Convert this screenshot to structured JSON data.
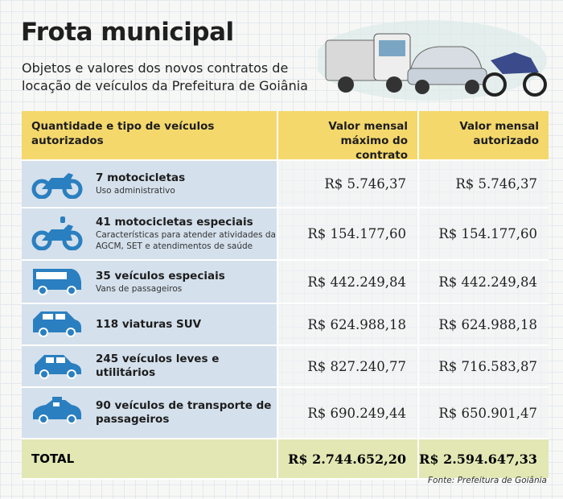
{
  "header": {
    "title": "Frota municipal",
    "subtitle": "Objetos e valores dos novos contratos de locação de veículos da Prefeitura de Goiânia"
  },
  "table": {
    "columns": [
      "Quantidade e tipo de veículos autorizados",
      "Valor mensal máximo do contrato",
      "Valor mensal autorizado"
    ],
    "rows": [
      {
        "title": "7 motocicletas",
        "description": "Uso administrativo",
        "max": "R$ 5.746,37",
        "authorized": "R$ 5.746,37"
      },
      {
        "title": "41 motocicletas especiais",
        "description": "Características para atender atividades da AGCM, SET e atendimentos de saúde",
        "max": "R$ 154.177,60",
        "authorized": "R$ 154.177,60"
      },
      {
        "title": "35 veículos especiais",
        "description": "Vans de passageiros",
        "max": "R$ 442.249,84",
        "authorized": "R$ 442.249,84"
      },
      {
        "title": "118 viaturas SUV",
        "max": "R$ 624.988,18",
        "authorized": "R$ 624.988,18"
      },
      {
        "title": "245 veículos leves e utilitários",
        "max": "R$ 827.240,77",
        "authorized": "R$ 716.583,87"
      },
      {
        "title": "90 veículos de transporte de passageiros",
        "max": "R$ 690.249,44",
        "authorized": "R$ 650.901,47"
      }
    ],
    "total": {
      "label": "TOTAL",
      "max": "R$ 2.744.652,20",
      "authorized": "R$ 2.594.647,33"
    }
  },
  "footer": {
    "source": "Fonte: Prefeitura de Goiânia"
  }
}
